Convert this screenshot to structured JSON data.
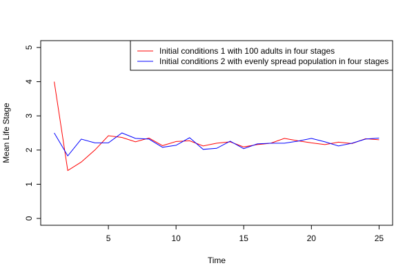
{
  "chart_data": {
    "type": "line",
    "title": "",
    "xlabel": "Time",
    "ylabel": "Mean Life Stage",
    "xlim": [
      0,
      26
    ],
    "ylim": [
      -0.2,
      5.2
    ],
    "x_ticks": [
      5,
      10,
      15,
      20,
      25
    ],
    "y_ticks": [
      0,
      1,
      2,
      3,
      4,
      5
    ],
    "grid": false,
    "legend_position": "top-right",
    "x": [
      1,
      2,
      3,
      4,
      5,
      6,
      7,
      8,
      9,
      10,
      11,
      12,
      13,
      14,
      15,
      16,
      17,
      18,
      19,
      20,
      21,
      22,
      23,
      24,
      25
    ],
    "series": [
      {
        "name": "Initial conditions 1 with 100 adults in four stages",
        "color": "#FF0000",
        "values": [
          4.0,
          1.4,
          1.65,
          2.0,
          2.42,
          2.37,
          2.24,
          2.35,
          2.13,
          2.25,
          2.27,
          2.12,
          2.2,
          2.24,
          2.09,
          2.16,
          2.2,
          2.34,
          2.27,
          2.21,
          2.16,
          2.23,
          2.19,
          2.33,
          2.3
        ]
      },
      {
        "name": "Initial conditions 2 with evenly spread population in four stages",
        "color": "#0000FF",
        "values": [
          2.5,
          1.83,
          2.32,
          2.21,
          2.21,
          2.5,
          2.34,
          2.32,
          2.08,
          2.14,
          2.36,
          2.02,
          2.05,
          2.26,
          2.04,
          2.18,
          2.2,
          2.2,
          2.26,
          2.34,
          2.24,
          2.12,
          2.2,
          2.32,
          2.35
        ]
      }
    ]
  }
}
